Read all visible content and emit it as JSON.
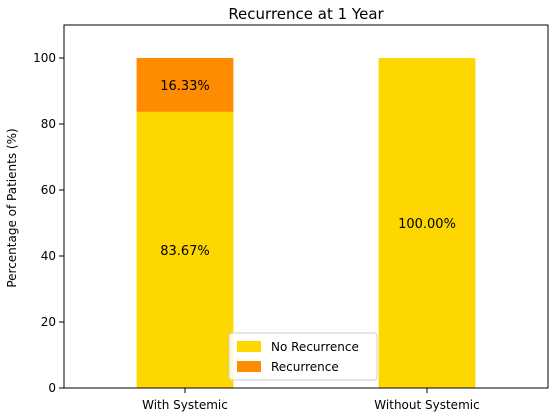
{
  "chart_data": {
    "type": "bar",
    "stacked": true,
    "title": "Recurrence at 1 Year",
    "xlabel": "",
    "ylabel": "Percentage of Patients (%)",
    "ylim": [
      0,
      110
    ],
    "yticks": [
      0,
      20,
      40,
      60,
      80,
      100
    ],
    "grid": false,
    "legend_position": "bottom-center",
    "categories": [
      "With Systemic",
      "Without Systemic"
    ],
    "series": [
      {
        "name": "No Recurrence",
        "color": "#FFD700",
        "values": [
          83.67,
          100.0
        ],
        "labels": [
          "83.67%",
          "100.00%"
        ]
      },
      {
        "name": "Recurrence",
        "color": "#FF8C00",
        "values": [
          16.33,
          0.0
        ],
        "labels": [
          "16.33%",
          ""
        ]
      }
    ]
  }
}
